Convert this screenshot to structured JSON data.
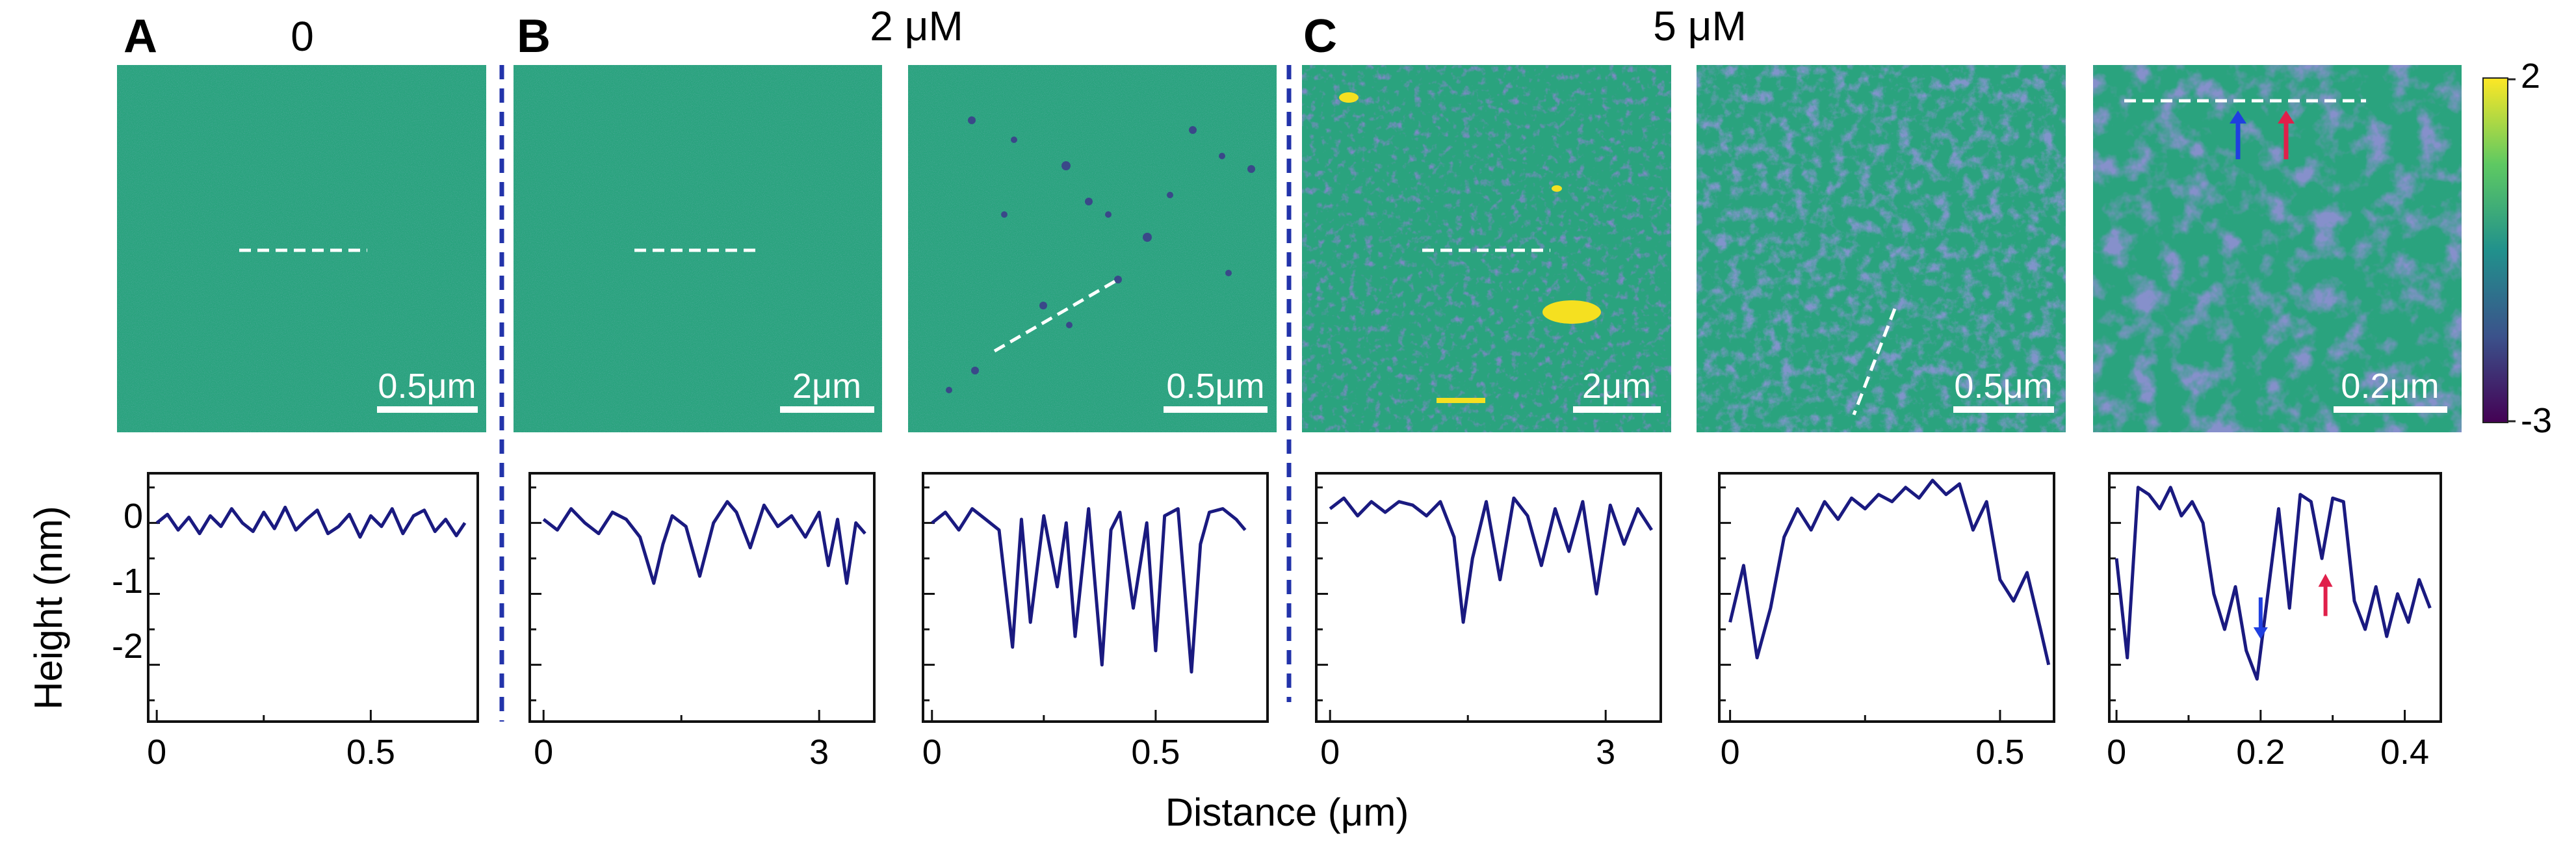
{
  "figure": {
    "panel_letters": [
      "A",
      "B",
      "C"
    ],
    "concentrations": [
      "0",
      "2 μM",
      "5 μM"
    ],
    "colorbar": {
      "max_label": "2",
      "min_label": "-3",
      "colors": [
        "#fde725",
        "#5ec962",
        "#21918c",
        "#3b528b",
        "#440154"
      ]
    },
    "accent": {
      "line": "#1a1a80",
      "divider": "#2233aa",
      "blue_arrow": "#1f3fe0",
      "red_arrow": "#e0204a",
      "afm_base": "#2aa37e"
    },
    "afm_images": [
      {
        "scale_label": "0.5μm"
      },
      {
        "scale_label": "2μm"
      },
      {
        "scale_label": "0.5μm"
      },
      {
        "scale_label": "2μm"
      },
      {
        "scale_label": "0.5μm"
      },
      {
        "scale_label": "0.2μm"
      }
    ],
    "y_axis_label": "Height (nm)",
    "x_axis_label": "Distance (μm)",
    "y_tick_labels": [
      "0",
      "-1",
      "-2"
    ]
  },
  "chart_data": [
    {
      "type": "line",
      "title": "0",
      "xlabel": "Distance (μm)",
      "ylabel": "Height (nm)",
      "xlim": [
        -0.02,
        0.75
      ],
      "ylim": [
        -2.8,
        0.7
      ],
      "xticks": [
        0,
        0.5
      ],
      "xtick_labels": [
        "0",
        "0.5"
      ],
      "x": [
        0,
        0.025,
        0.05,
        0.075,
        0.1,
        0.125,
        0.15,
        0.175,
        0.2,
        0.225,
        0.25,
        0.275,
        0.3,
        0.325,
        0.35,
        0.375,
        0.4,
        0.425,
        0.45,
        0.475,
        0.5,
        0.525,
        0.55,
        0.575,
        0.6,
        0.625,
        0.65,
        0.675,
        0.7,
        0.72
      ],
      "y": [
        0,
        0.12,
        -0.1,
        0.08,
        -0.15,
        0.1,
        -0.05,
        0.2,
        0.0,
        -0.12,
        0.15,
        -0.08,
        0.22,
        -0.1,
        0.05,
        0.18,
        -0.15,
        -0.05,
        0.12,
        -0.2,
        0.1,
        -0.05,
        0.2,
        -0.15,
        0.1,
        0.18,
        -0.12,
        0.05,
        -0.18,
        0.0
      ]
    },
    {
      "type": "line",
      "title": "2 μM",
      "xlabel": "Distance (μm)",
      "ylabel": "Height (nm)",
      "xlim": [
        -0.15,
        3.6
      ],
      "ylim": [
        -2.8,
        0.7
      ],
      "xticks": [
        0,
        3
      ],
      "xtick_labels": [
        "0",
        "3"
      ],
      "x": [
        0,
        0.15,
        0.3,
        0.45,
        0.6,
        0.75,
        0.9,
        1.05,
        1.2,
        1.3,
        1.4,
        1.55,
        1.7,
        1.85,
        2.0,
        2.1,
        2.25,
        2.4,
        2.55,
        2.7,
        2.85,
        3.0,
        3.1,
        3.2,
        3.3,
        3.4,
        3.5
      ],
      "y": [
        0.05,
        -0.1,
        0.2,
        0.0,
        -0.15,
        0.15,
        0.05,
        -0.2,
        -0.85,
        -0.3,
        0.1,
        -0.05,
        -0.75,
        0.0,
        0.3,
        0.15,
        -0.35,
        0.25,
        -0.05,
        0.1,
        -0.2,
        0.15,
        -0.6,
        0.05,
        -0.85,
        0.0,
        -0.15
      ]
    },
    {
      "type": "line",
      "title": "2 μM",
      "xlabel": "Distance (μm)",
      "ylabel": "Height (nm)",
      "xlim": [
        -0.02,
        0.75
      ],
      "ylim": [
        -2.8,
        0.7
      ],
      "xticks": [
        0,
        0.5
      ],
      "xtick_labels": [
        "0",
        "0.5"
      ],
      "x": [
        0,
        0.03,
        0.06,
        0.09,
        0.12,
        0.15,
        0.18,
        0.2,
        0.22,
        0.25,
        0.28,
        0.3,
        0.32,
        0.35,
        0.38,
        0.4,
        0.42,
        0.45,
        0.48,
        0.5,
        0.52,
        0.55,
        0.58,
        0.6,
        0.62,
        0.65,
        0.68,
        0.7
      ],
      "y": [
        0.0,
        0.15,
        -0.1,
        0.2,
        0.05,
        -0.1,
        -1.75,
        0.05,
        -1.4,
        0.1,
        -0.9,
        0.0,
        -1.6,
        0.2,
        -2.0,
        -0.1,
        0.15,
        -1.2,
        0.0,
        -1.8,
        0.1,
        0.2,
        -2.1,
        -0.3,
        0.15,
        0.2,
        0.05,
        -0.1
      ]
    },
    {
      "type": "line",
      "title": "5 μM",
      "xlabel": "Distance (μm)",
      "ylabel": "Height (nm)",
      "xlim": [
        -0.15,
        3.6
      ],
      "ylim": [
        -2.8,
        0.7
      ],
      "xticks": [
        0,
        3
      ],
      "xtick_labels": [
        "0",
        "3"
      ],
      "x": [
        0,
        0.15,
        0.3,
        0.45,
        0.6,
        0.75,
        0.9,
        1.05,
        1.2,
        1.35,
        1.45,
        1.55,
        1.7,
        1.85,
        2.0,
        2.15,
        2.3,
        2.45,
        2.6,
        2.75,
        2.9,
        3.05,
        3.2,
        3.35,
        3.5
      ],
      "y": [
        0.2,
        0.35,
        0.1,
        0.3,
        0.15,
        0.3,
        0.25,
        0.1,
        0.3,
        -0.2,
        -1.4,
        -0.5,
        0.3,
        -0.8,
        0.35,
        0.1,
        -0.6,
        0.2,
        -0.4,
        0.3,
        -1.0,
        0.25,
        -0.3,
        0.2,
        -0.1
      ]
    },
    {
      "type": "line",
      "title": "5 μM",
      "xlabel": "Distance (μm)",
      "ylabel": "Height (nm)",
      "xlim": [
        -0.02,
        0.6
      ],
      "ylim": [
        -2.8,
        0.7
      ],
      "xticks": [
        0,
        0.5
      ],
      "xtick_labels": [
        "0",
        "0.5"
      ],
      "x": [
        0,
        0.025,
        0.05,
        0.075,
        0.1,
        0.125,
        0.15,
        0.175,
        0.2,
        0.225,
        0.25,
        0.275,
        0.3,
        0.325,
        0.35,
        0.375,
        0.4,
        0.425,
        0.45,
        0.475,
        0.5,
        0.525,
        0.55,
        0.575,
        0.59
      ],
      "y": [
        -1.4,
        -0.6,
        -1.9,
        -1.2,
        -0.2,
        0.2,
        -0.1,
        0.3,
        0.05,
        0.35,
        0.2,
        0.4,
        0.3,
        0.5,
        0.35,
        0.6,
        0.4,
        0.55,
        -0.1,
        0.3,
        -0.8,
        -1.1,
        -0.7,
        -1.5,
        -2.0
      ]
    },
    {
      "type": "line",
      "title": "5 μM",
      "xlabel": "Distance (μm)",
      "ylabel": "Height (nm)",
      "xlim": [
        -0.01,
        0.45
      ],
      "ylim": [
        -2.8,
        0.7
      ],
      "xticks": [
        0,
        0.2,
        0.4
      ],
      "xtick_labels": [
        "0",
        "0.2",
        "0.4"
      ],
      "x": [
        0,
        0.015,
        0.03,
        0.045,
        0.06,
        0.075,
        0.09,
        0.105,
        0.12,
        0.135,
        0.15,
        0.165,
        0.18,
        0.195,
        0.21,
        0.225,
        0.24,
        0.255,
        0.27,
        0.285,
        0.3,
        0.315,
        0.33,
        0.345,
        0.36,
        0.375,
        0.39,
        0.405,
        0.42,
        0.435
      ],
      "y": [
        -0.5,
        -1.9,
        0.5,
        0.4,
        0.2,
        0.5,
        0.1,
        0.3,
        0.0,
        -1.0,
        -1.5,
        -0.9,
        -1.8,
        -2.2,
        -1.0,
        0.2,
        -1.2,
        0.4,
        0.3,
        -0.5,
        0.35,
        0.3,
        -1.1,
        -1.5,
        -0.9,
        -1.6,
        -1.0,
        -1.4,
        -0.8,
        -1.2
      ]
    }
  ]
}
